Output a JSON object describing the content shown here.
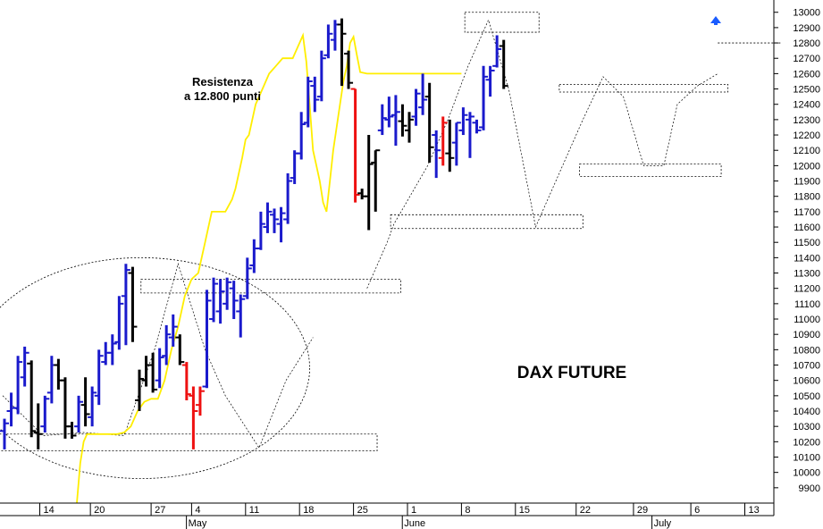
{
  "chart_data": {
    "type": "ohlc",
    "title": "DAX FUTURE",
    "annotation": [
      "Resistenza",
      "a 12.800 punti"
    ],
    "ylim": [
      9800,
      13080
    ],
    "y_ticks": [
      9900,
      10000,
      10100,
      10200,
      10300,
      10400,
      10500,
      10600,
      10700,
      10800,
      10900,
      11000,
      11100,
      11200,
      11300,
      11400,
      11500,
      11600,
      11700,
      11800,
      11900,
      12000,
      12100,
      12200,
      12300,
      12400,
      12500,
      12600,
      12700,
      12800,
      12900,
      13000
    ],
    "x_day_ticks": [
      {
        "label": "14",
        "i": 5.5
      },
      {
        "label": "20",
        "i": 13
      },
      {
        "label": "27",
        "i": 22
      },
      {
        "label": "4",
        "i": 28
      },
      {
        "label": "11",
        "i": 36
      },
      {
        "label": "18",
        "i": 44
      },
      {
        "label": "25",
        "i": 52
      },
      {
        "label": "1",
        "i": 60
      },
      {
        "label": "8",
        "i": 68
      },
      {
        "label": "15",
        "i": 76
      },
      {
        "label": "22",
        "i": 85
      },
      {
        "label": "29",
        "i": 93.5
      },
      {
        "label": "6",
        "i": 102
      },
      {
        "label": "13",
        "i": 110
      }
    ],
    "x_months": [
      {
        "label": "May",
        "i": 27.5
      },
      {
        "label": "June",
        "i": 59.5
      },
      {
        "label": "July",
        "i": 96.5
      }
    ],
    "bar_colors": {
      "b": "#1a1acc",
      "k": "#000000",
      "r": "#ee1111"
    },
    "bars": [
      {
        "i": 0,
        "h": 10350,
        "l": 10150,
        "o": 10270,
        "c": 10320,
        "k": "b"
      },
      {
        "i": 1,
        "h": 10520,
        "l": 10300,
        "o": 10400,
        "c": 10420,
        "k": "b"
      },
      {
        "i": 2,
        "h": 10760,
        "l": 10380,
        "o": 10420,
        "c": 10720,
        "k": "b"
      },
      {
        "i": 3,
        "h": 10820,
        "l": 10560,
        "o": 10620,
        "c": 10780,
        "k": "b"
      },
      {
        "i": 4,
        "h": 10730,
        "l": 10230,
        "o": 10710,
        "c": 10270,
        "k": "k"
      },
      {
        "i": 5,
        "h": 10450,
        "l": 10150,
        "o": 10260,
        "c": 10250,
        "k": "k"
      },
      {
        "i": 6,
        "h": 10500,
        "l": 10260,
        "o": 10300,
        "c": 10480,
        "k": "b"
      },
      {
        "i": 7,
        "h": 10760,
        "l": 10450,
        "o": 10520,
        "c": 10700,
        "k": "b"
      },
      {
        "i": 8,
        "h": 10740,
        "l": 10540,
        "o": 10700,
        "c": 10600,
        "k": "k"
      },
      {
        "i": 9,
        "h": 10620,
        "l": 10220,
        "o": 10600,
        "c": 10300,
        "k": "k"
      },
      {
        "i": 10,
        "h": 10330,
        "l": 10220,
        "o": 10300,
        "c": 10240,
        "k": "k"
      },
      {
        "i": 11,
        "h": 10500,
        "l": 10260,
        "o": 10300,
        "c": 10460,
        "k": "b"
      },
      {
        "i": 12,
        "h": 10620,
        "l": 10300,
        "o": 10440,
        "c": 10380,
        "k": "k"
      },
      {
        "i": 13,
        "h": 10560,
        "l": 10300,
        "o": 10360,
        "c": 10520,
        "k": "b"
      },
      {
        "i": 14,
        "h": 10800,
        "l": 10440,
        "o": 10500,
        "c": 10760,
        "k": "b"
      },
      {
        "i": 15,
        "h": 10850,
        "l": 10700,
        "o": 10720,
        "c": 10780,
        "k": "b"
      },
      {
        "i": 16,
        "h": 10900,
        "l": 10700,
        "o": 10780,
        "c": 10840,
        "k": "b"
      },
      {
        "i": 17,
        "h": 11150,
        "l": 10800,
        "o": 10850,
        "c": 11100,
        "k": "b"
      },
      {
        "i": 18,
        "h": 11360,
        "l": 10830,
        "o": 11150,
        "c": 11320,
        "k": "b"
      },
      {
        "i": 19,
        "h": 11340,
        "l": 10850,
        "o": 11300,
        "c": 10950,
        "k": "k"
      },
      {
        "i": 20,
        "h": 10670,
        "l": 10400,
        "o": 10470,
        "c": 10610,
        "k": "k"
      },
      {
        "i": 21,
        "h": 10760,
        "l": 10560,
        "o": 10600,
        "c": 10700,
        "k": "k"
      },
      {
        "i": 22,
        "h": 10780,
        "l": 10520,
        "o": 10700,
        "c": 10540,
        "k": "k"
      },
      {
        "i": 23,
        "h": 10810,
        "l": 10550,
        "o": 10600,
        "c": 10750,
        "k": "b"
      },
      {
        "i": 24,
        "h": 10960,
        "l": 10700,
        "o": 10760,
        "c": 10900,
        "k": "b"
      },
      {
        "i": 25,
        "h": 11030,
        "l": 10820,
        "o": 10880,
        "c": 10950,
        "k": "b"
      },
      {
        "i": 26,
        "h": 10900,
        "l": 10700,
        "o": 10880,
        "c": 10720,
        "k": "k"
      },
      {
        "i": 27,
        "h": 10720,
        "l": 10470,
        "o": 10700,
        "c": 10510,
        "k": "r"
      },
      {
        "i": 28,
        "h": 10560,
        "l": 10150,
        "o": 10500,
        "c": 10400,
        "k": "r"
      },
      {
        "i": 29,
        "h": 10560,
        "l": 10370,
        "o": 10440,
        "c": 10530,
        "k": "r"
      },
      {
        "i": 30,
        "h": 11190,
        "l": 10550,
        "o": 10560,
        "c": 11120,
        "k": "b"
      },
      {
        "i": 31,
        "h": 11270,
        "l": 10980,
        "o": 11000,
        "c": 11230,
        "k": "b"
      },
      {
        "i": 32,
        "h": 11260,
        "l": 10970,
        "o": 11050,
        "c": 11180,
        "k": "b"
      },
      {
        "i": 33,
        "h": 11270,
        "l": 11060,
        "o": 11100,
        "c": 11240,
        "k": "b"
      },
      {
        "i": 34,
        "h": 11250,
        "l": 11000,
        "o": 11200,
        "c": 11120,
        "k": "b"
      },
      {
        "i": 35,
        "h": 11160,
        "l": 10880,
        "o": 11050,
        "c": 11130,
        "k": "b"
      },
      {
        "i": 36,
        "h": 11400,
        "l": 11130,
        "o": 11150,
        "c": 11330,
        "k": "b"
      },
      {
        "i": 37,
        "h": 11520,
        "l": 11300,
        "o": 11350,
        "c": 11460,
        "k": "b"
      },
      {
        "i": 38,
        "h": 11700,
        "l": 11450,
        "o": 11460,
        "c": 11620,
        "k": "b"
      },
      {
        "i": 39,
        "h": 11760,
        "l": 11560,
        "o": 11600,
        "c": 11700,
        "k": "b"
      },
      {
        "i": 40,
        "h": 11720,
        "l": 11560,
        "o": 11680,
        "c": 11650,
        "k": "b"
      },
      {
        "i": 41,
        "h": 11730,
        "l": 11500,
        "o": 11620,
        "c": 11690,
        "k": "b"
      },
      {
        "i": 42,
        "h": 11950,
        "l": 11620,
        "o": 11650,
        "c": 11900,
        "k": "b"
      },
      {
        "i": 43,
        "h": 12100,
        "l": 11880,
        "o": 11920,
        "c": 12080,
        "k": "b"
      },
      {
        "i": 44,
        "h": 12350,
        "l": 12040,
        "o": 12080,
        "c": 12270,
        "k": "b"
      },
      {
        "i": 45,
        "h": 12580,
        "l": 12250,
        "o": 12280,
        "c": 12550,
        "k": "b"
      },
      {
        "i": 46,
        "h": 12580,
        "l": 12350,
        "o": 12520,
        "c": 12430,
        "k": "b"
      },
      {
        "i": 47,
        "h": 12750,
        "l": 12420,
        "o": 12450,
        "c": 12700,
        "k": "b"
      },
      {
        "i": 48,
        "h": 12920,
        "l": 12700,
        "o": 12720,
        "c": 12860,
        "k": "b"
      },
      {
        "i": 49,
        "h": 12950,
        "l": 12750,
        "o": 12820,
        "c": 12920,
        "k": "b"
      },
      {
        "i": 50,
        "h": 12960,
        "l": 12520,
        "o": 12920,
        "c": 12860,
        "k": "k"
      },
      {
        "i": 51,
        "h": 12750,
        "l": 12500,
        "o": 12730,
        "c": 12540,
        "k": "k"
      },
      {
        "i": 52,
        "h": 12500,
        "l": 11760,
        "o": 12500,
        "c": 11810,
        "k": "r"
      },
      {
        "i": 53,
        "h": 11850,
        "l": 11780,
        "o": 11820,
        "c": 11800,
        "k": "k"
      },
      {
        "i": 54,
        "h": 12200,
        "l": 11580,
        "o": 11800,
        "c": 12010,
        "k": "k"
      },
      {
        "i": 55,
        "h": 12100,
        "l": 11700,
        "o": 12020,
        "c": 12100,
        "k": "k"
      },
      {
        "i": 56,
        "h": 12400,
        "l": 12200,
        "o": 12230,
        "c": 12310,
        "k": "b"
      },
      {
        "i": 57,
        "h": 12450,
        "l": 12250,
        "o": 12300,
        "c": 12320,
        "k": "b"
      },
      {
        "i": 58,
        "h": 12460,
        "l": 12130,
        "o": 12330,
        "c": 12350,
        "k": "b"
      },
      {
        "i": 59,
        "h": 12400,
        "l": 12190,
        "o": 12290,
        "c": 12260,
        "k": "k"
      },
      {
        "i": 60,
        "h": 12350,
        "l": 12150,
        "o": 12230,
        "c": 12300,
        "k": "k"
      },
      {
        "i": 61,
        "h": 12500,
        "l": 12260,
        "o": 12320,
        "c": 12470,
        "k": "b"
      },
      {
        "i": 62,
        "h": 12600,
        "l": 12330,
        "o": 12380,
        "c": 12430,
        "k": "b"
      },
      {
        "i": 63,
        "h": 12540,
        "l": 12020,
        "o": 12450,
        "c": 12120,
        "k": "k"
      },
      {
        "i": 64,
        "h": 12230,
        "l": 11920,
        "o": 12200,
        "c": 12100,
        "k": "b"
      },
      {
        "i": 65,
        "h": 12320,
        "l": 12000,
        "o": 12050,
        "c": 12280,
        "k": "r"
      },
      {
        "i": 66,
        "h": 12300,
        "l": 11960,
        "o": 12080,
        "c": 12050,
        "k": "k"
      },
      {
        "i": 67,
        "h": 12280,
        "l": 12000,
        "o": 12150,
        "c": 12280,
        "k": "b"
      },
      {
        "i": 68,
        "h": 12380,
        "l": 12200,
        "o": 12230,
        "c": 12330,
        "k": "b"
      },
      {
        "i": 69,
        "h": 12350,
        "l": 12050,
        "o": 12300,
        "c": 12320,
        "k": "b"
      },
      {
        "i": 70,
        "h": 12300,
        "l": 12210,
        "o": 12280,
        "c": 12230,
        "k": "b"
      },
      {
        "i": 71,
        "h": 12650,
        "l": 12230,
        "o": 12250,
        "c": 12580,
        "k": "b"
      },
      {
        "i": 72,
        "h": 12650,
        "l": 12450,
        "o": 12560,
        "c": 12620,
        "k": "b"
      },
      {
        "i": 73,
        "h": 12850,
        "l": 12640,
        "o": 12650,
        "c": 12760,
        "k": "b"
      },
      {
        "i": 74,
        "h": 12820,
        "l": 12500,
        "o": 12780,
        "c": 12520,
        "k": "k"
      }
    ],
    "moving_average": {
      "color": "#ffee00",
      "points": [
        [
          22,
          9800
        ],
        [
          23,
          10060
        ],
        [
          24,
          10200
        ],
        [
          25,
          10250
        ],
        [
          26,
          10250
        ],
        [
          28,
          10250
        ],
        [
          30,
          10250
        ],
        [
          32,
          10250
        ],
        [
          34,
          10250
        ],
        [
          36,
          10260
        ],
        [
          38,
          10300
        ],
        [
          40,
          10400
        ],
        [
          42,
          10460
        ],
        [
          44,
          10480
        ],
        [
          46,
          10480
        ],
        [
          48,
          10600
        ],
        [
          50,
          10800
        ],
        [
          52,
          10950
        ],
        [
          54,
          11150
        ],
        [
          56,
          11260
        ],
        [
          58,
          11300
        ],
        [
          60,
          11500
        ],
        [
          62,
          11700
        ],
        [
          64,
          11700
        ],
        [
          66,
          11700
        ],
        [
          68,
          11780
        ],
        [
          69,
          11850
        ],
        [
          71,
          12050
        ],
        [
          72,
          12170
        ],
        [
          73,
          12200
        ],
        [
          75,
          12400
        ],
        [
          77,
          12500
        ],
        [
          79,
          12600
        ],
        [
          81,
          12650
        ],
        [
          83,
          12700
        ],
        [
          85,
          12700
        ],
        [
          86,
          12700
        ],
        [
          87,
          12750
        ],
        [
          88,
          12800
        ],
        [
          89,
          12850
        ],
        [
          90,
          12680
        ],
        [
          91,
          12400
        ],
        [
          92,
          12100
        ],
        [
          93,
          12000
        ],
        [
          94,
          11900
        ],
        [
          95,
          11760
        ],
        [
          96,
          11700
        ],
        [
          97,
          11900
        ],
        [
          98,
          12100
        ],
        [
          99,
          12250
        ],
        [
          100,
          12400
        ],
        [
          101,
          12550
        ],
        [
          102,
          12650
        ],
        [
          103,
          12800
        ],
        [
          104,
          12840
        ],
        [
          105,
          12720
        ],
        [
          106,
          12610
        ],
        [
          108,
          12600
        ],
        [
          110,
          12600
        ],
        [
          112,
          12600
        ],
        [
          114,
          12600
        ],
        [
          116,
          12600
        ],
        [
          118,
          12600
        ],
        [
          120,
          12600
        ],
        [
          122,
          12600
        ],
        [
          124,
          12600
        ],
        [
          126,
          12600
        ],
        [
          128,
          12600
        ],
        [
          130,
          12600
        ],
        [
          132,
          12600
        ],
        [
          134,
          12600
        ],
        [
          136,
          12600
        ]
      ]
    },
    "support_zones": [
      {
        "x0": -1,
        "x1": 55.5,
        "ylo": 10140,
        "yhi": 10250
      },
      {
        "x0": 20.5,
        "x1": 59,
        "ylo": 11170,
        "yhi": 11260
      },
      {
        "x0": 57.5,
        "x1": 86,
        "ylo": 11590,
        "yhi": 11680
      },
      {
        "x0": 68.5,
        "x1": 79.5,
        "ylo": 12870,
        "yhi": 13000
      },
      {
        "x0": 82.5,
        "x1": 107.5,
        "ylo": 12480,
        "yhi": 12530
      },
      {
        "x0": 85.5,
        "x1": 106.5,
        "ylo": 11930,
        "yhi": 12010
      },
      {
        "x0": 106,
        "x1": 115.5,
        "ylo": 12800,
        "yhi": 12800
      }
    ],
    "trend_lines": [
      [
        [
          0,
          10500
        ],
        [
          6,
          10240
        ],
        [
          12,
          10260
        ],
        [
          18,
          10240
        ],
        [
          22.5,
          10800
        ],
        [
          26,
          11360
        ],
        [
          30,
          10800
        ],
        [
          33,
          10500
        ],
        [
          38,
          10160
        ],
        [
          42,
          10600
        ],
        [
          46,
          10880
        ]
      ],
      [
        [
          54,
          11200
        ],
        [
          57,
          11500
        ],
        [
          58,
          11620
        ],
        [
          63,
          12000
        ],
        [
          66,
          12300
        ],
        [
          69,
          12650
        ],
        [
          72,
          12950
        ],
        [
          75,
          12500
        ],
        [
          79,
          11600
        ],
        [
          83,
          12000
        ],
        [
          86,
          12300
        ],
        [
          89,
          12580
        ],
        [
          92,
          12450
        ],
        [
          95,
          12000
        ],
        [
          98,
          12000
        ],
        [
          100,
          12400
        ],
        [
          103,
          12520
        ],
        [
          106,
          12600
        ]
      ]
    ],
    "ellipse": {
      "cx": 20.5,
      "cy": 10680,
      "rx": 25,
      "ry": 720
    }
  }
}
